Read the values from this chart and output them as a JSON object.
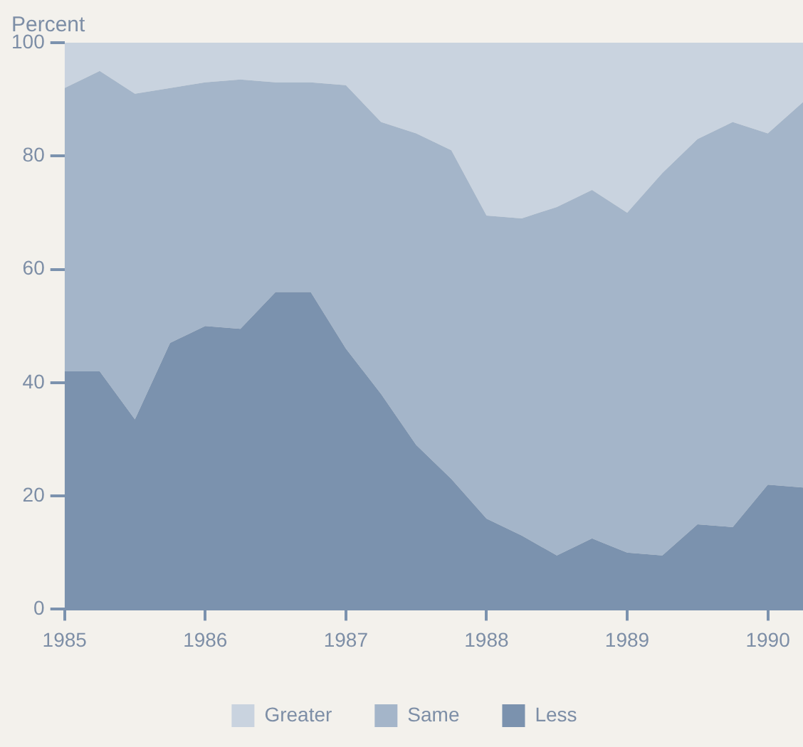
{
  "chart_data": {
    "type": "area",
    "stacked": true,
    "ylabel": "Percent",
    "x": [
      1985,
      1985.25,
      1985.5,
      1985.75,
      1986,
      1986.25,
      1986.5,
      1986.75,
      1987,
      1987.25,
      1987.5,
      1987.75,
      1988,
      1988.25,
      1988.5,
      1988.75,
      1989,
      1989.25,
      1989.5,
      1989.75,
      1990,
      1990.25
    ],
    "series": [
      {
        "name": "Less",
        "color": "#7b92ae",
        "values": [
          42,
          42,
          33.5,
          47,
          50,
          49.5,
          56,
          56,
          46,
          38,
          29,
          23,
          16,
          13,
          9.5,
          12.5,
          10,
          9.5,
          15,
          14.5,
          22,
          21.5
        ]
      },
      {
        "name": "Same",
        "color": "#a4b5c9",
        "values": [
          50,
          53,
          57.5,
          45,
          43,
          44,
          37,
          37,
          46.5,
          48,
          55,
          58,
          53.5,
          56,
          61.5,
          61.5,
          60,
          67.5,
          68,
          71.5,
          62,
          68
        ]
      },
      {
        "name": "Greater",
        "color": "#c9d3df",
        "values": [
          8,
          5,
          9,
          8,
          7,
          6.5,
          7,
          7,
          7.5,
          14,
          16,
          19,
          30.5,
          31,
          29,
          26,
          30,
          23,
          17,
          14,
          16,
          10.5
        ]
      }
    ],
    "xlim": [
      1985,
      1990.25
    ],
    "xticks": [
      1985,
      1986,
      1987,
      1988,
      1989,
      1990
    ],
    "ylim": [
      0,
      100
    ],
    "yticks": [
      0,
      20,
      40,
      60,
      80,
      100
    ],
    "grid": false,
    "legend": "bottom"
  }
}
